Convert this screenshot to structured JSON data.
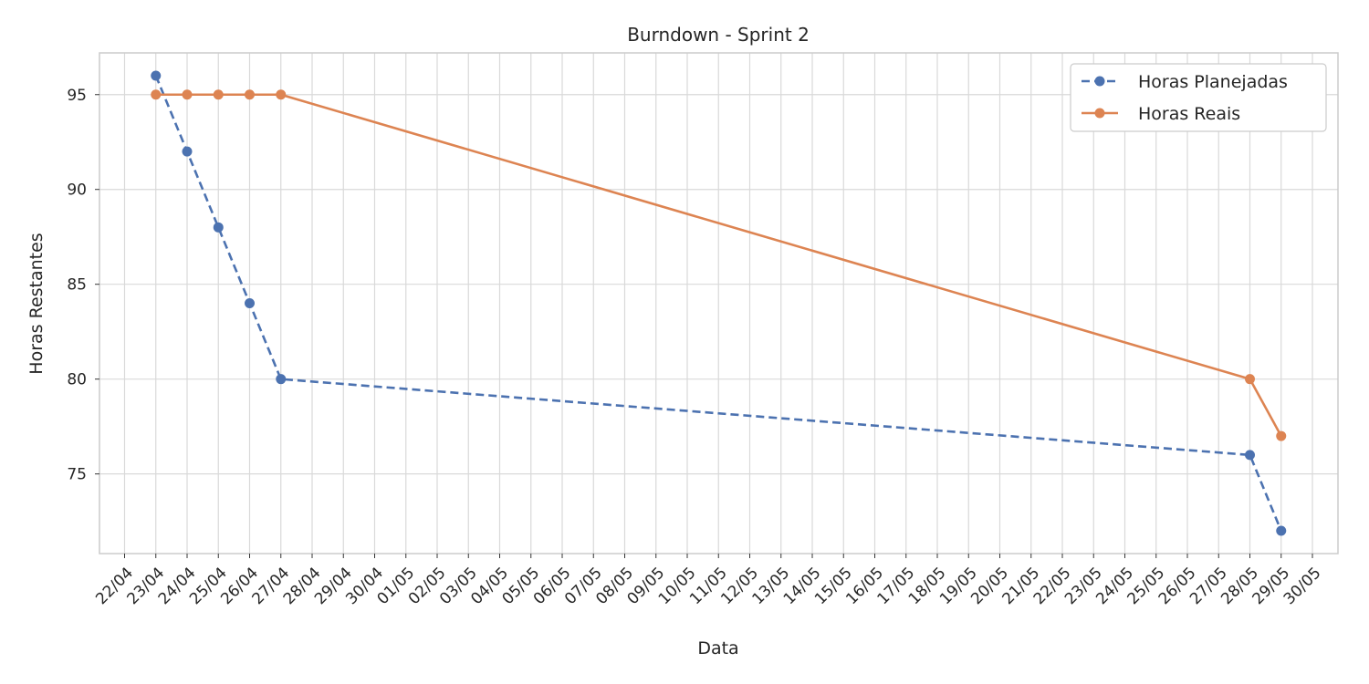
{
  "chart_data": {
    "type": "line",
    "title": "Burndown - Sprint 2",
    "xlabel": "Data",
    "ylabel": "Horas Restantes",
    "x_tick_labels": [
      "22/04",
      "23/04",
      "24/04",
      "25/04",
      "26/04",
      "27/04",
      "28/04",
      "29/04",
      "30/04",
      "01/05",
      "02/05",
      "03/05",
      "04/05",
      "05/05",
      "06/05",
      "07/05",
      "08/05",
      "09/05",
      "10/05",
      "11/05",
      "12/05",
      "13/05",
      "14/05",
      "15/05",
      "16/05",
      "17/05",
      "18/05",
      "19/05",
      "20/05",
      "21/05",
      "22/05",
      "23/05",
      "24/05",
      "25/05",
      "26/05",
      "27/05",
      "28/05",
      "29/05",
      "30/05"
    ],
    "y_ticks": [
      75,
      80,
      85,
      90,
      95
    ],
    "ylim": [
      70.8,
      97.2
    ],
    "xlim": [
      "21/04 (approx. 0.2 day after)",
      "30/05 (approx. 0.8 day after)"
    ],
    "grid": true,
    "legend_position": "top-right",
    "series": [
      {
        "name": "Horas Planejadas",
        "color": "#4c72b0",
        "line_style": "dashed",
        "marker": "circle",
        "x": [
          "23/04",
          "24/04",
          "25/04",
          "26/04",
          "27/04",
          "28/05",
          "29/05"
        ],
        "values": [
          96,
          92,
          88,
          84,
          80,
          76,
          72
        ]
      },
      {
        "name": "Horas Reais",
        "color": "#dd8452",
        "line_style": "solid",
        "marker": "circle",
        "x": [
          "23/04",
          "24/04",
          "25/04",
          "26/04",
          "27/04",
          "28/05",
          "29/05"
        ],
        "values": [
          95,
          95,
          95,
          95,
          95,
          80,
          77
        ]
      }
    ]
  }
}
